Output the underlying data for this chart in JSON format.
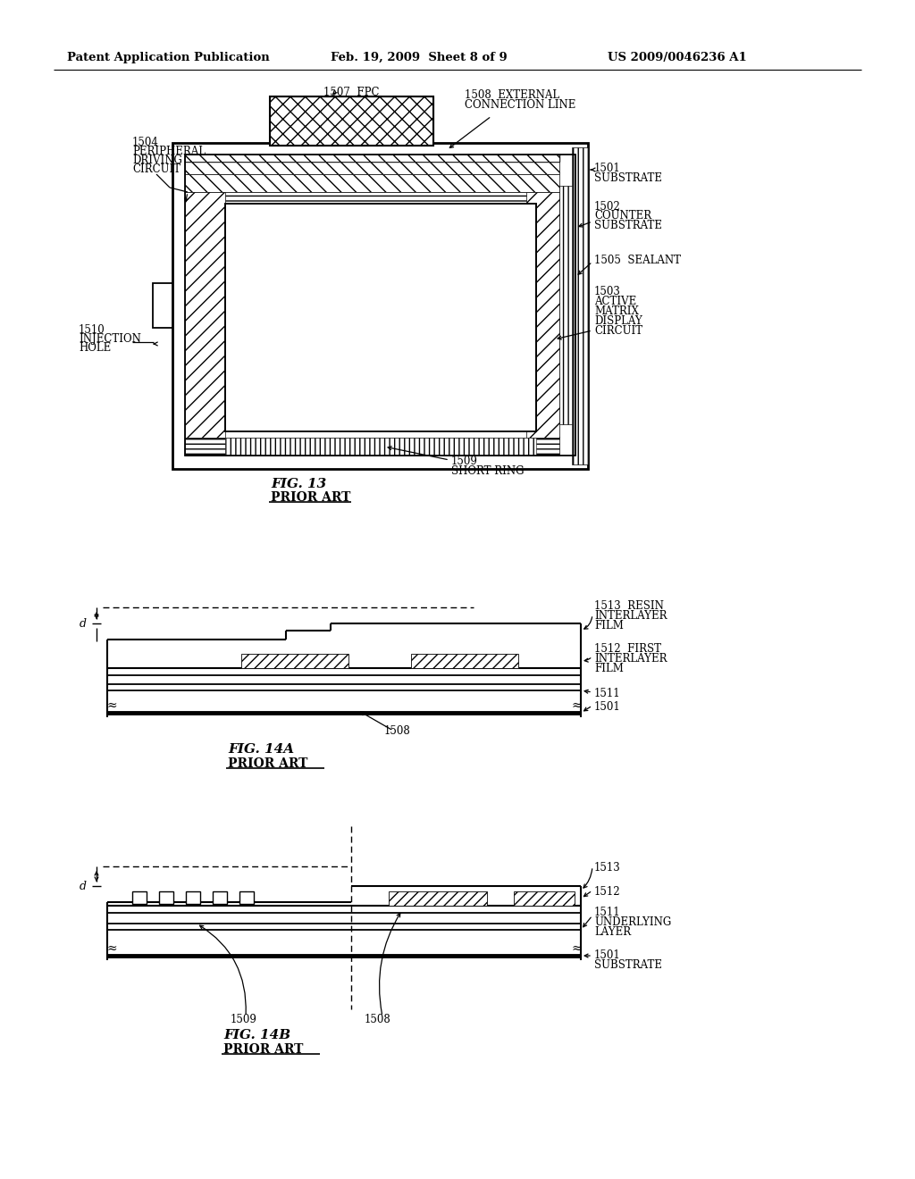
{
  "background_color": "#ffffff",
  "header_left": "Patent Application Publication",
  "header_mid": "Feb. 19, 2009  Sheet 8 of 9",
  "header_right": "US 2009/0046236 A1",
  "fig13_title": "FIG. 13",
  "fig13_sub": "PRIOR ART",
  "fig14a_title": "FIG. 14A",
  "fig14a_sub": "PRIOR ART",
  "fig14b_title": "FIG. 14B",
  "fig14b_sub": "PRIOR ART"
}
